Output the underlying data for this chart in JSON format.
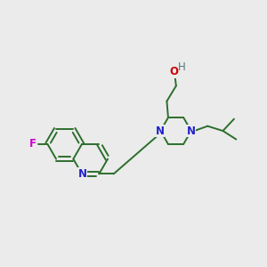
{
  "background_color": "#ebebeb",
  "bond_color": "#2d6e2d",
  "n_color": "#2222cc",
  "f_color": "#cc00cc",
  "o_color": "#cc0000",
  "h_color": "#557777",
  "font_size": 8.5,
  "figsize": [
    3.0,
    3.0
  ],
  "dpi": 100,
  "xlim": [
    0,
    10
  ],
  "ylim": [
    0,
    10
  ]
}
